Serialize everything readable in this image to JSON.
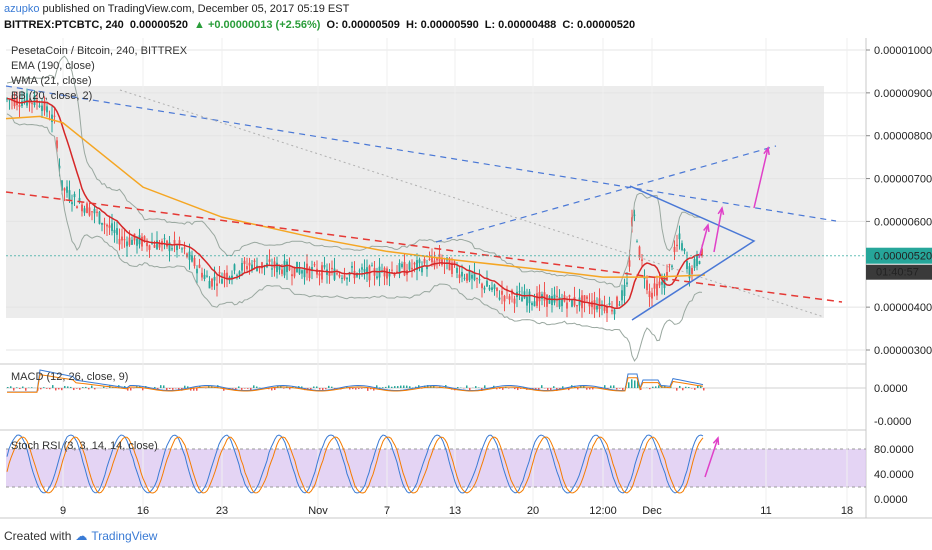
{
  "header": {
    "user": "azupko",
    "published_text": "published on TradingView.com, December 05, 2017 05:19 EST",
    "symbol": "BITTREX:PTCBTC, 240",
    "price": "0.00000520",
    "change": "+0.00000013 (+2.56%)",
    "open_label": "O:",
    "open": "0.00000509",
    "high_label": "H:",
    "high": "0.00000590",
    "low_label": "L:",
    "low": "0.00000488",
    "close_label": "C:",
    "close": "0.00000520"
  },
  "legend": {
    "main": "PesetaCoin / Bitcoin, 240, BITTREX",
    "ema": "EMA (190, close)",
    "wma": "WMA (21, close)",
    "bb": "BB (20, close, 2)",
    "macd": "MACD (12, 26, close, 9)",
    "stoch": "Stoch RSI (3, 3, 14, 14, close)"
  },
  "price_axis": {
    "labels": [
      "0.00001000",
      "0.00000900",
      "0.00000800",
      "0.00000700",
      "0.00000600",
      "0.00000400",
      "0.00000300"
    ],
    "current": "0.00000520",
    "countdown": "01:40:57",
    "current_color": "#26a69a"
  },
  "macd_axis": {
    "labels": [
      "0.0000",
      "-0.0000"
    ]
  },
  "stoch_axis": {
    "labels": [
      "80.0000",
      "40.0000",
      "0.0000"
    ]
  },
  "time_axis": {
    "labels": [
      "9",
      "16",
      "23",
      "Nov",
      "7",
      "13",
      "20",
      "12:00",
      "Dec",
      "11",
      "18"
    ]
  },
  "footer": {
    "created": "Created with",
    "brand": "TradingView"
  },
  "colors": {
    "ema": "#f5a623",
    "wma": "#d62728",
    "bb": "#9aa8a0",
    "bull": "#26a69a",
    "bear": "#ef5350",
    "trend_red": "#e53935",
    "trend_blue": "#4a78d6",
    "arrow": "#e040c8",
    "stoch_band": "#d9c2f0"
  },
  "chart_data": {
    "type": "candlestick",
    "title": "PesetaCoin / Bitcoin, 240, BITTREX",
    "x_ticks": [
      "9",
      "16",
      "23",
      "Nov",
      "7",
      "13",
      "20",
      "12:00",
      "Dec",
      "11",
      "18"
    ],
    "y_ticks": [
      3e-06,
      4e-06,
      6e-06,
      7e-06,
      8e-06,
      9e-06,
      1e-05
    ],
    "ylim": [
      2.7e-06,
      1.04e-05
    ],
    "series": [
      {
        "name": "PesetaCoin / Bitcoin",
        "x": [
          "9",
          "16",
          "23",
          "Nov",
          "7",
          "13",
          "20",
          "12:00",
          "Dec"
        ],
        "values": [
          7.2e-06,
          5.8e-06,
          4.9e-06,
          5e-06,
          4.9e-06,
          4.8e-06,
          4.3e-06,
          4e-06,
          5.2e-06
        ]
      },
      {
        "name": "EMA (190, close)",
        "x": [
          "9",
          "16",
          "23",
          "Nov",
          "7",
          "13",
          "20",
          "12:00",
          "Dec"
        ],
        "values": [
          8.3e-06,
          6.8e-06,
          6.1e-06,
          5.6e-06,
          5.3e-06,
          5.1e-06,
          4.9e-06,
          4.7e-06,
          4.7e-06
        ]
      }
    ]
  }
}
